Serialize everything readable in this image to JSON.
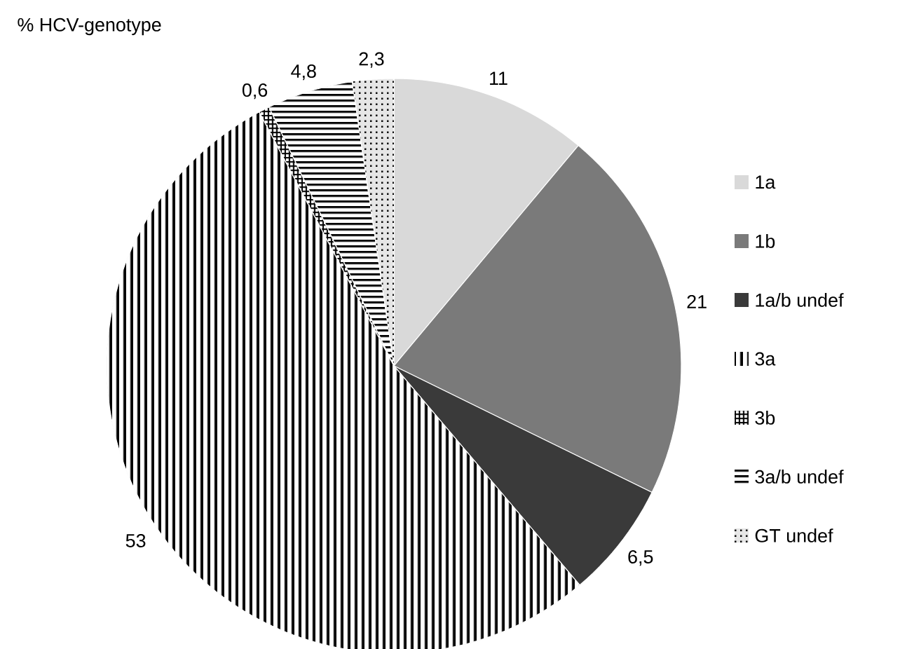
{
  "chart_data": {
    "type": "pie",
    "title": "% HCV-genotype",
    "categories": [
      "1a",
      "1b",
      "1a/b undef",
      "3a",
      "3b",
      "3a/b undef",
      "GT undef"
    ],
    "values": [
      11,
      21,
      6.5,
      53,
      0.6,
      4.8,
      2.3
    ],
    "value_labels": [
      "11",
      "21",
      "6,5",
      "53",
      "0,6",
      "4,8",
      "2,3"
    ],
    "colors": [
      "#d9d9d9",
      "#7a7a7a",
      "#3a3a3a",
      "#000000",
      "#000000",
      "#000000",
      "#e6e6e6"
    ],
    "legend": "right"
  }
}
